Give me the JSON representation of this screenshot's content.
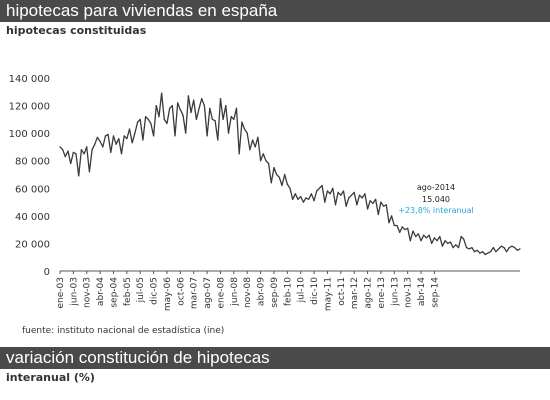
{
  "header": {
    "title": "hipotecas para viviendas en españa",
    "subtitle": "hipotecas constituidas"
  },
  "footer": {
    "title": "variación constitución de hipotecas",
    "subtitle": "interanual (%)"
  },
  "source": "fuente: instituto nacional de estadística (ine)",
  "colors": {
    "bar_bg": "#4a4a4a",
    "line": "#3a3a3a",
    "annotation_accent": "#2aa8d8",
    "text": "#333333"
  },
  "annotation": {
    "label": "ago-2014",
    "value": "15.040",
    "change": "+23,8% interanual"
  },
  "chart_data": {
    "type": "line",
    "xlabel": "",
    "ylabel": "",
    "ylim": [
      0,
      140000
    ],
    "grid": false,
    "yticks": [
      0,
      20000,
      40000,
      60000,
      80000,
      100000,
      120000,
      140000
    ],
    "ytick_labels": [
      "0",
      "20 000",
      "40 000",
      "60 000",
      "80 000",
      "100 000",
      "120 000",
      "140 000"
    ],
    "x_start": "ene-03",
    "x_end": "sep-14",
    "xtick_labels": [
      "ene-03",
      "jun-03",
      "nov-03",
      "abr-04",
      "sep-04",
      "feb-05",
      "jul-05",
      "dic-05",
      "may-06",
      "oct-06",
      "mar-07",
      "ago-07",
      "ene-08",
      "jun-08",
      "nov-08",
      "abr-09",
      "sep-09",
      "feb-10",
      "jul-10",
      "dic-10",
      "may-11",
      "oct-11",
      "mar-12",
      "ago-12",
      "ene-13",
      "jun-13",
      "nov-13",
      "abr-14",
      "sep-14"
    ],
    "series": [
      {
        "values": [
          90000,
          88000,
          83000,
          87000,
          78000,
          86000,
          85000,
          69000,
          88000,
          85000,
          90000,
          72000,
          88000,
          92000,
          97000,
          94000,
          90000,
          98000,
          99000,
          86000,
          98000,
          92000,
          96000,
          85000,
          98000,
          96000,
          103000,
          93000,
          100000,
          108000,
          110000,
          95000,
          112000,
          110000,
          107000,
          98000,
          120000,
          112000,
          129000,
          110000,
          107000,
          118000,
          120000,
          98000,
          122000,
          117000,
          113000,
          100000,
          127000,
          115000,
          124000,
          110000,
          118000,
          125000,
          120000,
          98000,
          118000,
          110000,
          109000,
          95000,
          125000,
          110000,
          120000,
          100000,
          112000,
          110000,
          118000,
          85000,
          108000,
          103000,
          100000,
          88000,
          95000,
          90000,
          97000,
          80000,
          85000,
          80000,
          78000,
          64000,
          75000,
          70000,
          68000,
          62000,
          70000,
          63000,
          60000,
          52000,
          56000,
          52000,
          54000,
          50000,
          53000,
          52000,
          56000,
          51000,
          58000,
          60000,
          62000,
          50000,
          58000,
          56000,
          60000,
          48000,
          57000,
          55000,
          58000,
          47000,
          53000,
          55000,
          57000,
          48000,
          55000,
          53000,
          56000,
          45000,
          51000,
          49000,
          52000,
          41000,
          50000,
          47000,
          48000,
          35000,
          40000,
          33000,
          33000,
          28000,
          32000,
          30000,
          31000,
          22000,
          29000,
          25000,
          27000,
          22000,
          26000,
          24000,
          26000,
          20000,
          24000,
          22000,
          25000,
          18000,
          22000,
          20000,
          21000,
          17000,
          19000,
          17000,
          25000,
          23000,
          17000,
          16000,
          17000,
          14000,
          15000,
          13000,
          14000,
          12000,
          13000,
          14000,
          17000,
          14000,
          16000,
          18000,
          17000,
          14000,
          17000,
          18000,
          17000,
          15040,
          16000
        ]
      }
    ]
  }
}
